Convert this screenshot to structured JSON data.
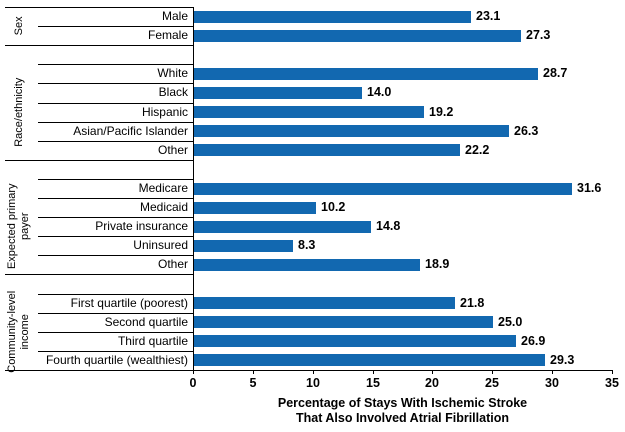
{
  "chart_data": {
    "type": "bar",
    "orientation": "horizontal",
    "title": "",
    "xlabel_lines": [
      "Percentage of Stays With Ischemic Stroke",
      "That Also Involved  Atrial Fibrillation"
    ],
    "ylabel": "",
    "xlim": [
      0,
      35
    ],
    "xticks": [
      "0",
      "5",
      "10",
      "15",
      "20",
      "25",
      "30",
      "35"
    ],
    "grid": false,
    "legend": false,
    "bar_color": "#1268B0",
    "axis_color": "#000000",
    "groups": [
      {
        "label_lines": [
          "Sex"
        ],
        "items": [
          {
            "label": "Male",
            "value": 23.1,
            "display": "23.1"
          },
          {
            "label": "Female",
            "value": 27.3,
            "display": "27.3"
          }
        ]
      },
      {
        "label_lines": [
          "Race/ethnicity"
        ],
        "items": [
          {
            "label": "White",
            "value": 28.7,
            "display": "28.7"
          },
          {
            "label": "Black",
            "value": 14.0,
            "display": "14.0"
          },
          {
            "label": "Hispanic",
            "value": 19.2,
            "display": "19.2"
          },
          {
            "label": "Asian/Pacific Islander",
            "value": 26.3,
            "display": "26.3"
          },
          {
            "label": "Other",
            "value": 22.2,
            "display": "22.2"
          }
        ]
      },
      {
        "label_lines": [
          "Expected primary",
          "payer"
        ],
        "items": [
          {
            "label": "Medicare",
            "value": 31.6,
            "display": "31.6"
          },
          {
            "label": "Medicaid",
            "value": 10.2,
            "display": "10.2"
          },
          {
            "label": "Private insurance",
            "value": 14.8,
            "display": "14.8"
          },
          {
            "label": "Uninsured",
            "value": 8.3,
            "display": "8.3"
          },
          {
            "label": "Other",
            "value": 18.9,
            "display": "18.9"
          }
        ]
      },
      {
        "label_lines": [
          "Community-level",
          "income"
        ],
        "items": [
          {
            "label": "First quartile (poorest)",
            "value": 21.8,
            "display": "21.8"
          },
          {
            "label": "Second quartile",
            "value": 25.0,
            "display": "25.0"
          },
          {
            "label": "Third quartile",
            "value": 26.9,
            "display": "26.9"
          },
          {
            "label": "Fourth quartile (wealthiest)",
            "value": 29.3,
            "display": "29.3"
          }
        ]
      }
    ]
  }
}
